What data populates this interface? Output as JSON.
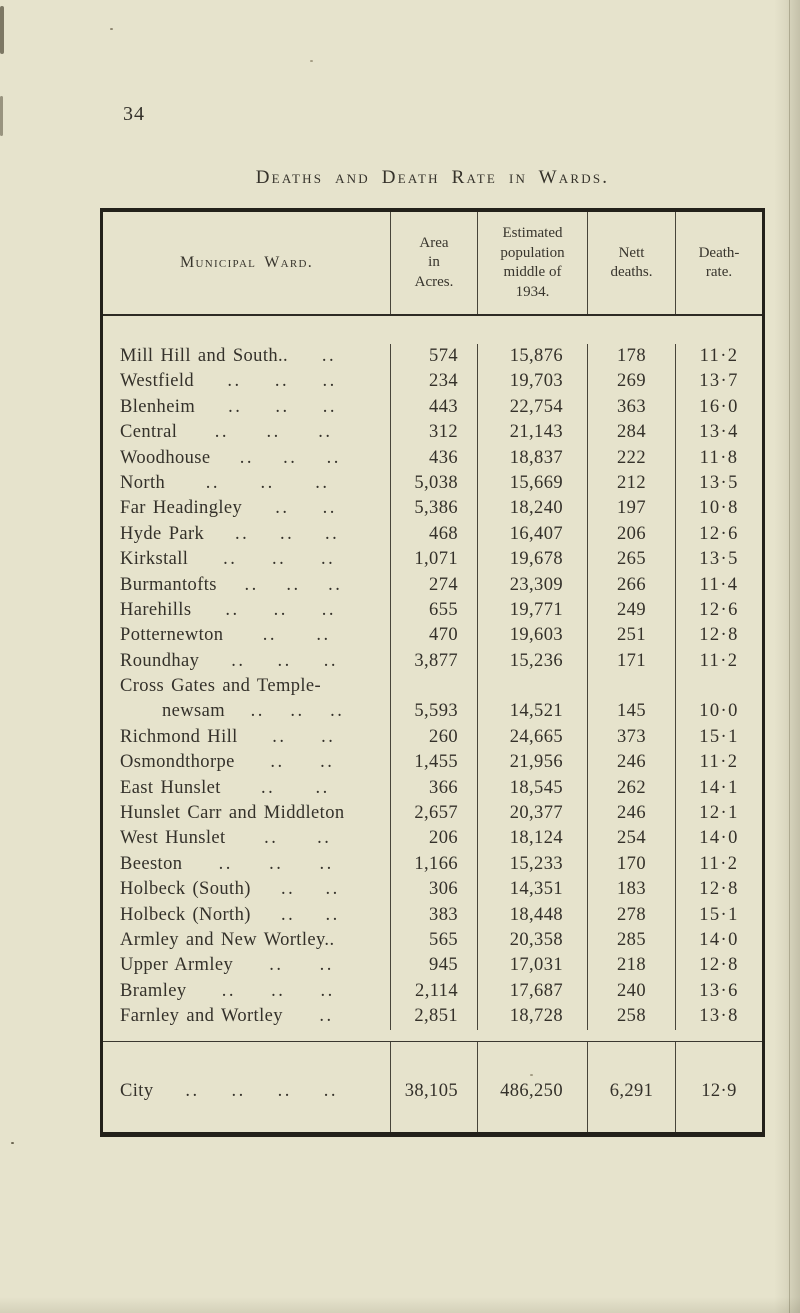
{
  "page": {
    "number": "34",
    "title": "Deaths and Death Rate in Wards."
  },
  "table": {
    "leader_glyph": "..",
    "headers": {
      "ward": "Municipal Ward.",
      "area_lines": [
        "Area",
        "in",
        "Acres."
      ],
      "population_lines": [
        "Estimated",
        "population",
        "middle of",
        "1934."
      ],
      "deaths_lines": [
        "Nett",
        "deaths."
      ],
      "rate_lines": [
        "Death-",
        "rate."
      ]
    },
    "rows": [
      {
        "name": "Mill Hill and South..",
        "dots": 1,
        "area": "574",
        "population": "15,876",
        "deaths": "178",
        "rate": "11·2"
      },
      {
        "name": "Westfield",
        "dots": 3,
        "area": "234",
        "population": "19,703",
        "deaths": "269",
        "rate": "13·7"
      },
      {
        "name": "Blenheim",
        "dots": 3,
        "area": "443",
        "population": "22,754",
        "deaths": "363",
        "rate": "16·0"
      },
      {
        "name": "Central",
        "dots": 3,
        "area": "312",
        "population": "21,143",
        "deaths": "284",
        "rate": "13·4"
      },
      {
        "name": "Woodhouse",
        "dots": 3,
        "area": "436",
        "population": "18,837",
        "deaths": "222",
        "rate": "11·8"
      },
      {
        "name": "North",
        "dots": 3,
        "area": "5,038",
        "population": "15,669",
        "deaths": "212",
        "rate": "13·5"
      },
      {
        "name": "Far Headingley",
        "dots": 2,
        "area": "5,386",
        "population": "18,240",
        "deaths": "197",
        "rate": "10·8"
      },
      {
        "name": "Hyde Park",
        "dots": 3,
        "area": "468",
        "population": "16,407",
        "deaths": "206",
        "rate": "12·6"
      },
      {
        "name": "Kirkstall",
        "dots": 3,
        "area": "1,071",
        "population": "19,678",
        "deaths": "265",
        "rate": "13·5"
      },
      {
        "name": "Burmantofts",
        "dots": 3,
        "area": "274",
        "population": "23,309",
        "deaths": "266",
        "rate": "11·4"
      },
      {
        "name": "Harehills",
        "dots": 3,
        "area": "655",
        "population": "19,771",
        "deaths": "249",
        "rate": "12·6"
      },
      {
        "name": "Potternewton",
        "dots": 2,
        "area": "470",
        "population": "19,603",
        "deaths": "251",
        "rate": "12·8"
      },
      {
        "name": "Roundhay",
        "dots": 3,
        "area": "3,877",
        "population": "15,236",
        "deaths": "171",
        "rate": "11·2"
      },
      {
        "name": "Cross Gates and Temple-",
        "name2": "newsam",
        "dots": 3,
        "area": "5,593",
        "population": "14,521",
        "deaths": "145",
        "rate": "10·0"
      },
      {
        "name": "Richmond Hill",
        "dots": 2,
        "area": "260",
        "population": "24,665",
        "deaths": "373",
        "rate": "15·1"
      },
      {
        "name": "Osmondthorpe",
        "dots": 2,
        "area": "1,455",
        "population": "21,956",
        "deaths": "246",
        "rate": "11·2"
      },
      {
        "name": "East Hunslet",
        "dots": 2,
        "area": "366",
        "population": "18,545",
        "deaths": "262",
        "rate": "14·1"
      },
      {
        "name": "Hunslet Carr and Middleton",
        "dots": 0,
        "area": "2,657",
        "population": "20,377",
        "deaths": "246",
        "rate": "12·1"
      },
      {
        "name": "West Hunslet",
        "dots": 2,
        "area": "206",
        "population": "18,124",
        "deaths": "254",
        "rate": "14·0"
      },
      {
        "name": "Beeston",
        "dots": 3,
        "area": "1,166",
        "population": "15,233",
        "deaths": "170",
        "rate": "11·2"
      },
      {
        "name": "Holbeck (South)",
        "dots": 2,
        "area": "306",
        "population": "14,351",
        "deaths": "183",
        "rate": "12·8"
      },
      {
        "name": "Holbeck (North)",
        "dots": 2,
        "area": "383",
        "population": "18,448",
        "deaths": "278",
        "rate": "15·1"
      },
      {
        "name": "Armley and New Wortley..",
        "dots": 0,
        "area": "565",
        "population": "20,358",
        "deaths": "285",
        "rate": "14·0"
      },
      {
        "name": "Upper Armley",
        "dots": 2,
        "area": "945",
        "population": "17,031",
        "deaths": "218",
        "rate": "12·8"
      },
      {
        "name": "Bramley",
        "dots": 3,
        "area": "2,114",
        "population": "17,687",
        "deaths": "240",
        "rate": "13·6"
      },
      {
        "name": "Farnley and Wortley",
        "dots": 1,
        "area": "2,851",
        "population": "18,728",
        "deaths": "258",
        "rate": "13·8"
      }
    ],
    "total": {
      "name": "City",
      "dots": 4,
      "area": "38,105",
      "population": "486,250",
      "deaths": "6,291",
      "rate": "12·9"
    }
  }
}
